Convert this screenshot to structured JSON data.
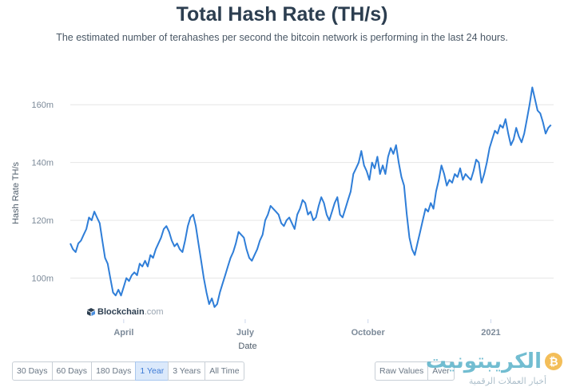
{
  "header": {
    "title": "Total Hash Rate (TH/s)",
    "subtitle": "The estimated number of terahashes per second the bitcoin network is performing in the last 24 hours."
  },
  "brand": {
    "name": "Blockchain",
    "domain": ".com"
  },
  "range_buttons": [
    {
      "label": "30 Days",
      "active": false
    },
    {
      "label": "60 Days",
      "active": false
    },
    {
      "label": "180 Days",
      "active": false
    },
    {
      "label": "1 Year",
      "active": true
    },
    {
      "label": "3 Years",
      "active": false
    },
    {
      "label": "All Time",
      "active": false
    }
  ],
  "view_buttons": [
    {
      "label": "Raw Values",
      "active": false
    },
    {
      "label": "Aver",
      "active": false
    }
  ],
  "watermark": {
    "text": "الكريبتونيت",
    "subtitle": "أخبار العملات الرقمية",
    "coin_symbol": "₿"
  },
  "colors": {
    "line": "#2f7ed8",
    "grid": "#e6e6e6",
    "active_button": "#dbe9fb"
  },
  "chart_data": {
    "type": "line",
    "title": "Total Hash Rate (TH/s)",
    "xlabel": "Date",
    "ylabel": "Hash Rate TH/s",
    "ylim": [
      88,
      170
    ],
    "yticks": [
      {
        "value": 100,
        "label": "100m"
      },
      {
        "value": 120,
        "label": "120m"
      },
      {
        "value": 140,
        "label": "140m"
      },
      {
        "value": 160,
        "label": "160m"
      }
    ],
    "xticks": [
      {
        "value": "2020-04-01",
        "label": "April"
      },
      {
        "value": "2020-07-01",
        "label": "July"
      },
      {
        "value": "2020-10-01",
        "label": "October"
      },
      {
        "value": "2021-01-01",
        "label": "2021"
      }
    ],
    "x_range": [
      "2020-02-21",
      "2021-02-17"
    ],
    "grid": true,
    "legend": "none",
    "series": [
      {
        "points": [
          [
            "2020-02-21",
            112
          ],
          [
            "2020-02-23",
            110
          ],
          [
            "2020-02-25",
            109
          ],
          [
            "2020-02-27",
            112
          ],
          [
            "2020-02-29",
            113
          ],
          [
            "2020-03-02",
            115
          ],
          [
            "2020-03-04",
            117
          ],
          [
            "2020-03-06",
            121
          ],
          [
            "2020-03-08",
            120
          ],
          [
            "2020-03-10",
            123
          ],
          [
            "2020-03-12",
            121
          ],
          [
            "2020-03-14",
            119
          ],
          [
            "2020-03-16",
            113
          ],
          [
            "2020-03-18",
            107
          ],
          [
            "2020-03-20",
            105
          ],
          [
            "2020-03-22",
            100
          ],
          [
            "2020-03-24",
            95
          ],
          [
            "2020-03-26",
            94
          ],
          [
            "2020-03-28",
            96
          ],
          [
            "2020-03-30",
            94
          ],
          [
            "2020-04-01",
            97
          ],
          [
            "2020-04-03",
            100
          ],
          [
            "2020-04-05",
            99
          ],
          [
            "2020-04-07",
            101
          ],
          [
            "2020-04-09",
            102
          ],
          [
            "2020-04-11",
            101
          ],
          [
            "2020-04-13",
            105
          ],
          [
            "2020-04-15",
            104
          ],
          [
            "2020-04-17",
            106
          ],
          [
            "2020-04-19",
            104
          ],
          [
            "2020-04-21",
            108
          ],
          [
            "2020-04-23",
            107
          ],
          [
            "2020-04-25",
            110
          ],
          [
            "2020-04-27",
            112
          ],
          [
            "2020-04-29",
            114
          ],
          [
            "2020-05-01",
            117
          ],
          [
            "2020-05-03",
            118
          ],
          [
            "2020-05-05",
            116
          ],
          [
            "2020-05-07",
            113
          ],
          [
            "2020-05-09",
            111
          ],
          [
            "2020-05-11",
            112
          ],
          [
            "2020-05-13",
            110
          ],
          [
            "2020-05-15",
            109
          ],
          [
            "2020-05-17",
            113
          ],
          [
            "2020-05-19",
            118
          ],
          [
            "2020-05-21",
            121
          ],
          [
            "2020-05-23",
            122
          ],
          [
            "2020-05-25",
            118
          ],
          [
            "2020-05-27",
            112
          ],
          [
            "2020-05-29",
            106
          ],
          [
            "2020-05-31",
            100
          ],
          [
            "2020-06-02",
            95
          ],
          [
            "2020-06-04",
            91
          ],
          [
            "2020-06-06",
            93
          ],
          [
            "2020-06-08",
            90
          ],
          [
            "2020-06-10",
            91
          ],
          [
            "2020-06-12",
            95
          ],
          [
            "2020-06-14",
            98
          ],
          [
            "2020-06-16",
            101
          ],
          [
            "2020-06-18",
            104
          ],
          [
            "2020-06-20",
            107
          ],
          [
            "2020-06-22",
            109
          ],
          [
            "2020-06-24",
            112
          ],
          [
            "2020-06-26",
            116
          ],
          [
            "2020-06-28",
            115
          ],
          [
            "2020-06-30",
            114
          ],
          [
            "2020-07-02",
            110
          ],
          [
            "2020-07-04",
            107
          ],
          [
            "2020-07-06",
            106
          ],
          [
            "2020-07-08",
            108
          ],
          [
            "2020-07-10",
            110
          ],
          [
            "2020-07-12",
            113
          ],
          [
            "2020-07-14",
            115
          ],
          [
            "2020-07-16",
            120
          ],
          [
            "2020-07-18",
            122
          ],
          [
            "2020-07-20",
            125
          ],
          [
            "2020-07-22",
            124
          ],
          [
            "2020-07-24",
            123
          ],
          [
            "2020-07-26",
            122
          ],
          [
            "2020-07-28",
            119
          ],
          [
            "2020-07-30",
            118
          ],
          [
            "2020-08-01",
            120
          ],
          [
            "2020-08-03",
            121
          ],
          [
            "2020-08-05",
            119
          ],
          [
            "2020-08-07",
            117
          ],
          [
            "2020-08-09",
            122
          ],
          [
            "2020-08-11",
            124
          ],
          [
            "2020-08-13",
            127
          ],
          [
            "2020-08-15",
            126
          ],
          [
            "2020-08-17",
            122
          ],
          [
            "2020-08-19",
            123
          ],
          [
            "2020-08-21",
            120
          ],
          [
            "2020-08-23",
            121
          ],
          [
            "2020-08-25",
            125
          ],
          [
            "2020-08-27",
            128
          ],
          [
            "2020-08-29",
            126
          ],
          [
            "2020-08-31",
            122
          ],
          [
            "2020-09-02",
            120
          ],
          [
            "2020-09-04",
            123
          ],
          [
            "2020-09-06",
            126
          ],
          [
            "2020-09-08",
            128
          ],
          [
            "2020-09-10",
            122
          ],
          [
            "2020-09-12",
            121
          ],
          [
            "2020-09-14",
            124
          ],
          [
            "2020-09-16",
            127
          ],
          [
            "2020-09-18",
            130
          ],
          [
            "2020-09-20",
            136
          ],
          [
            "2020-09-22",
            138
          ],
          [
            "2020-09-24",
            140
          ],
          [
            "2020-09-26",
            144
          ],
          [
            "2020-09-28",
            139
          ],
          [
            "2020-09-30",
            137
          ],
          [
            "2020-10-02",
            134
          ],
          [
            "2020-10-04",
            140
          ],
          [
            "2020-10-06",
            138
          ],
          [
            "2020-10-08",
            142
          ],
          [
            "2020-10-10",
            136
          ],
          [
            "2020-10-12",
            139
          ],
          [
            "2020-10-14",
            136
          ],
          [
            "2020-10-16",
            142
          ],
          [
            "2020-10-18",
            145
          ],
          [
            "2020-10-20",
            143
          ],
          [
            "2020-10-22",
            146
          ],
          [
            "2020-10-24",
            140
          ],
          [
            "2020-10-26",
            135
          ],
          [
            "2020-10-28",
            132
          ],
          [
            "2020-10-30",
            122
          ],
          [
            "2020-11-01",
            114
          ],
          [
            "2020-11-03",
            110
          ],
          [
            "2020-11-05",
            108
          ],
          [
            "2020-11-07",
            112
          ],
          [
            "2020-11-09",
            116
          ],
          [
            "2020-11-11",
            120
          ],
          [
            "2020-11-13",
            124
          ],
          [
            "2020-11-15",
            123
          ],
          [
            "2020-11-17",
            126
          ],
          [
            "2020-11-19",
            124
          ],
          [
            "2020-11-21",
            130
          ],
          [
            "2020-11-23",
            134
          ],
          [
            "2020-11-25",
            139
          ],
          [
            "2020-11-27",
            136
          ],
          [
            "2020-11-29",
            132
          ],
          [
            "2020-12-01",
            134
          ],
          [
            "2020-12-03",
            133
          ],
          [
            "2020-12-05",
            136
          ],
          [
            "2020-12-07",
            135
          ],
          [
            "2020-12-09",
            138
          ],
          [
            "2020-12-11",
            134
          ],
          [
            "2020-12-13",
            136
          ],
          [
            "2020-12-15",
            135
          ],
          [
            "2020-12-17",
            134
          ],
          [
            "2020-12-19",
            137
          ],
          [
            "2020-12-21",
            141
          ],
          [
            "2020-12-23",
            140
          ],
          [
            "2020-12-25",
            133
          ],
          [
            "2020-12-27",
            136
          ],
          [
            "2020-12-29",
            140
          ],
          [
            "2020-12-31",
            145
          ],
          [
            "2021-01-02",
            148
          ],
          [
            "2021-01-04",
            151
          ],
          [
            "2021-01-06",
            150
          ],
          [
            "2021-01-08",
            153
          ],
          [
            "2021-01-10",
            152
          ],
          [
            "2021-01-12",
            155
          ],
          [
            "2021-01-14",
            150
          ],
          [
            "2021-01-16",
            146
          ],
          [
            "2021-01-18",
            148
          ],
          [
            "2021-01-20",
            152
          ],
          [
            "2021-01-22",
            149
          ],
          [
            "2021-01-24",
            147
          ],
          [
            "2021-01-26",
            150
          ],
          [
            "2021-01-28",
            155
          ],
          [
            "2021-01-30",
            160
          ],
          [
            "2021-02-01",
            166
          ],
          [
            "2021-02-03",
            162
          ],
          [
            "2021-02-05",
            158
          ],
          [
            "2021-02-07",
            157
          ],
          [
            "2021-02-09",
            154
          ],
          [
            "2021-02-11",
            150
          ],
          [
            "2021-02-13",
            152
          ],
          [
            "2021-02-15",
            153
          ]
        ]
      }
    ]
  }
}
